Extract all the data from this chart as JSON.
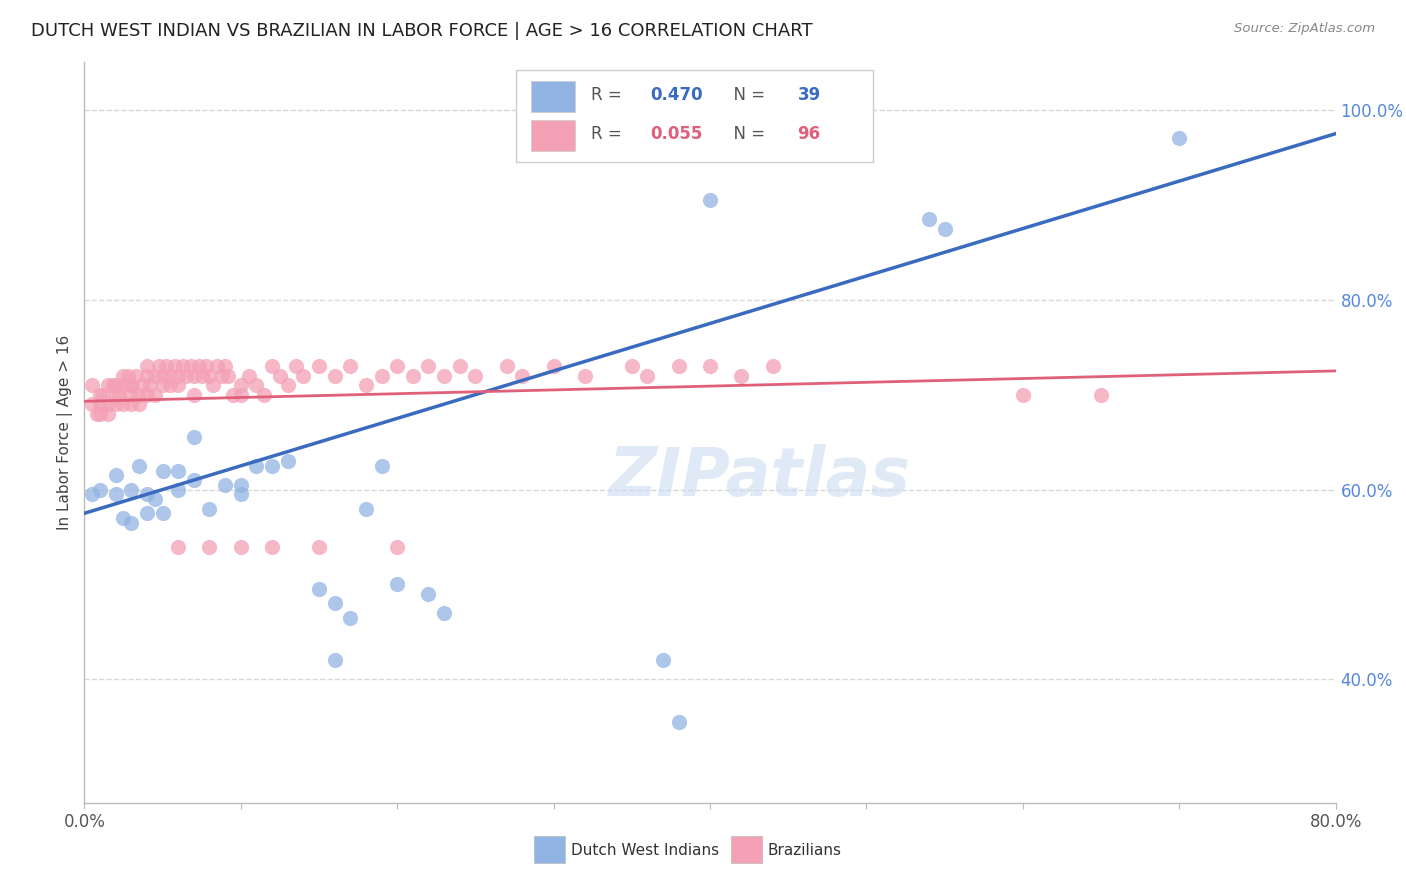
{
  "title": "DUTCH WEST INDIAN VS BRAZILIAN IN LABOR FORCE | AGE > 16 CORRELATION CHART",
  "source": "Source: ZipAtlas.com",
  "ylabel": "In Labor Force | Age > 16",
  "xlim": [
    0.0,
    0.8
  ],
  "ylim": [
    0.27,
    1.05
  ],
  "yticks": [
    0.4,
    0.6,
    0.8,
    1.0
  ],
  "ytick_labels": [
    "40.0%",
    "60.0%",
    "80.0%",
    "100.0%"
  ],
  "xtick_positions": [
    0.0,
    0.1,
    0.2,
    0.3,
    0.4,
    0.5,
    0.6,
    0.7,
    0.8
  ],
  "blue_R": 0.47,
  "blue_N": 39,
  "pink_R": 0.055,
  "pink_N": 96,
  "blue_color": "#92b4e3",
  "pink_color": "#f4a0b5",
  "blue_line_color": "#3a6bbf",
  "pink_line_color": "#e0607a",
  "watermark": "ZIPatlas",
  "background_color": "#ffffff",
  "grid_color": "#d8d8d8",
  "title_fontsize": 13,
  "tick_label_color_y": "#5588dd",
  "tick_label_color_x": "#555555",
  "blue_scatter_x": [
    0.005,
    0.01,
    0.02,
    0.02,
    0.025,
    0.03,
    0.03,
    0.035,
    0.04,
    0.04,
    0.045,
    0.05,
    0.05,
    0.06,
    0.06,
    0.07,
    0.07,
    0.08,
    0.09,
    0.1,
    0.1,
    0.11,
    0.12,
    0.13,
    0.15,
    0.16,
    0.17,
    0.18,
    0.19,
    0.2,
    0.22,
    0.23,
    0.38,
    0.54,
    0.55,
    0.7,
    0.4,
    0.37,
    0.16
  ],
  "blue_scatter_y": [
    0.595,
    0.6,
    0.595,
    0.615,
    0.57,
    0.565,
    0.6,
    0.625,
    0.595,
    0.575,
    0.59,
    0.575,
    0.62,
    0.62,
    0.6,
    0.655,
    0.61,
    0.58,
    0.605,
    0.605,
    0.595,
    0.625,
    0.625,
    0.63,
    0.495,
    0.48,
    0.465,
    0.58,
    0.625,
    0.5,
    0.49,
    0.47,
    0.355,
    0.885,
    0.875,
    0.97,
    0.905,
    0.42,
    0.42
  ],
  "pink_scatter_x": [
    0.005,
    0.005,
    0.008,
    0.01,
    0.01,
    0.01,
    0.012,
    0.015,
    0.015,
    0.015,
    0.018,
    0.02,
    0.02,
    0.02,
    0.022,
    0.025,
    0.025,
    0.025,
    0.028,
    0.03,
    0.03,
    0.03,
    0.03,
    0.033,
    0.035,
    0.035,
    0.037,
    0.04,
    0.04,
    0.04,
    0.042,
    0.045,
    0.045,
    0.048,
    0.05,
    0.05,
    0.052,
    0.055,
    0.055,
    0.058,
    0.06,
    0.06,
    0.063,
    0.065,
    0.068,
    0.07,
    0.07,
    0.073,
    0.075,
    0.078,
    0.08,
    0.082,
    0.085,
    0.088,
    0.09,
    0.092,
    0.095,
    0.1,
    0.1,
    0.105,
    0.11,
    0.115,
    0.12,
    0.125,
    0.13,
    0.135,
    0.14,
    0.15,
    0.16,
    0.17,
    0.18,
    0.19,
    0.2,
    0.21,
    0.22,
    0.23,
    0.24,
    0.25,
    0.27,
    0.28,
    0.3,
    0.32,
    0.35,
    0.36,
    0.38,
    0.4,
    0.42,
    0.44,
    0.2,
    0.15,
    0.12,
    0.1,
    0.08,
    0.06,
    0.6,
    0.65
  ],
  "pink_scatter_y": [
    0.69,
    0.71,
    0.68,
    0.69,
    0.7,
    0.68,
    0.7,
    0.71,
    0.69,
    0.68,
    0.71,
    0.7,
    0.69,
    0.71,
    0.7,
    0.72,
    0.71,
    0.69,
    0.72,
    0.71,
    0.7,
    0.69,
    0.71,
    0.72,
    0.7,
    0.69,
    0.71,
    0.73,
    0.72,
    0.7,
    0.71,
    0.72,
    0.7,
    0.73,
    0.72,
    0.71,
    0.73,
    0.72,
    0.71,
    0.73,
    0.72,
    0.71,
    0.73,
    0.72,
    0.73,
    0.72,
    0.7,
    0.73,
    0.72,
    0.73,
    0.72,
    0.71,
    0.73,
    0.72,
    0.73,
    0.72,
    0.7,
    0.71,
    0.7,
    0.72,
    0.71,
    0.7,
    0.73,
    0.72,
    0.71,
    0.73,
    0.72,
    0.73,
    0.72,
    0.73,
    0.71,
    0.72,
    0.73,
    0.72,
    0.73,
    0.72,
    0.73,
    0.72,
    0.73,
    0.72,
    0.73,
    0.72,
    0.73,
    0.72,
    0.73,
    0.73,
    0.72,
    0.73,
    0.54,
    0.54,
    0.54,
    0.54,
    0.54,
    0.54,
    0.7,
    0.7
  ],
  "blue_line_x": [
    0.0,
    0.8
  ],
  "blue_line_y": [
    0.575,
    0.975
  ],
  "pink_line_x": [
    0.0,
    0.8
  ],
  "pink_line_y": [
    0.693,
    0.725
  ],
  "legend_blue_text_color": "#3a6bbf",
  "legend_pink_text_color": "#e0607a",
  "legend_label_color": "#555555"
}
